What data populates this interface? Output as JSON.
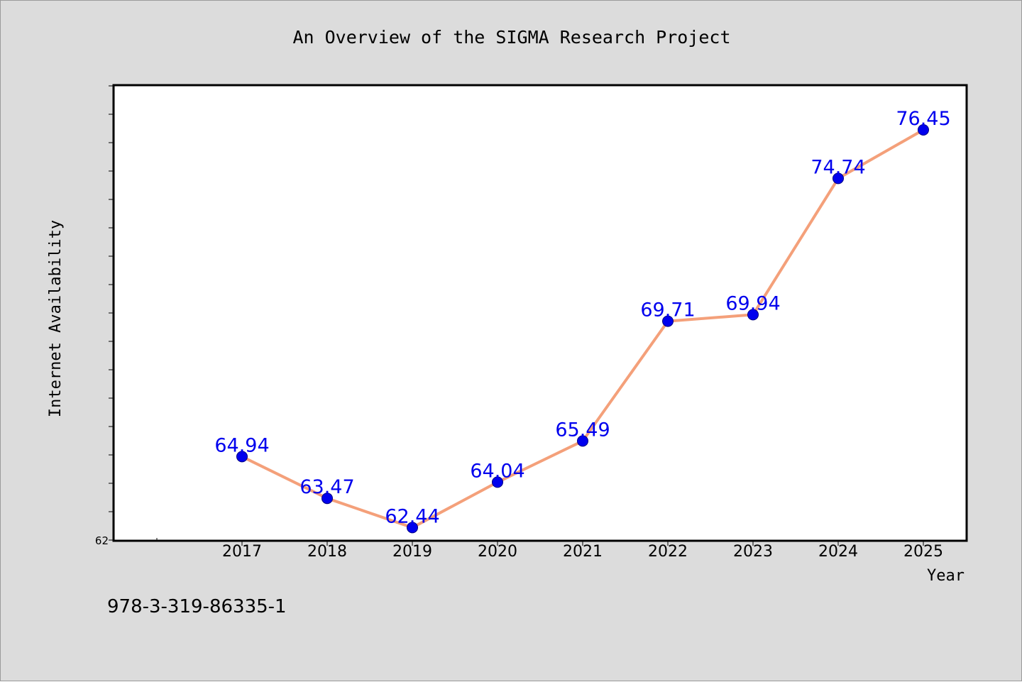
{
  "chart_data": {
    "type": "line",
    "title": "An Overview of the SIGMA Research Project",
    "xlabel": "Year",
    "ylabel": "Internet Availability",
    "categories": [
      "2017",
      "2018",
      "2019",
      "2020",
      "2021",
      "2022",
      "2023",
      "2024",
      "2025"
    ],
    "values": [
      64.94,
      63.47,
      62.44,
      64.04,
      65.49,
      69.71,
      69.94,
      74.74,
      76.45
    ],
    "data_labels": [
      "64.94",
      "63.47",
      "62.44",
      "64.04",
      "65.49",
      "69.71",
      "69.94",
      "74.74",
      "76.45"
    ],
    "ylim": [
      62,
      78
    ],
    "yticks_labeled": [
      "62"
    ],
    "grid": false,
    "legend": "none",
    "annotation": "978-3-319-86335-1",
    "colors": {
      "figure_background": "#dcdcdc",
      "plot_background": "#ffffff",
      "line": "#f4a07a",
      "marker": "#0000ee",
      "data_label": "#0000ee",
      "axis": "#000000"
    }
  }
}
